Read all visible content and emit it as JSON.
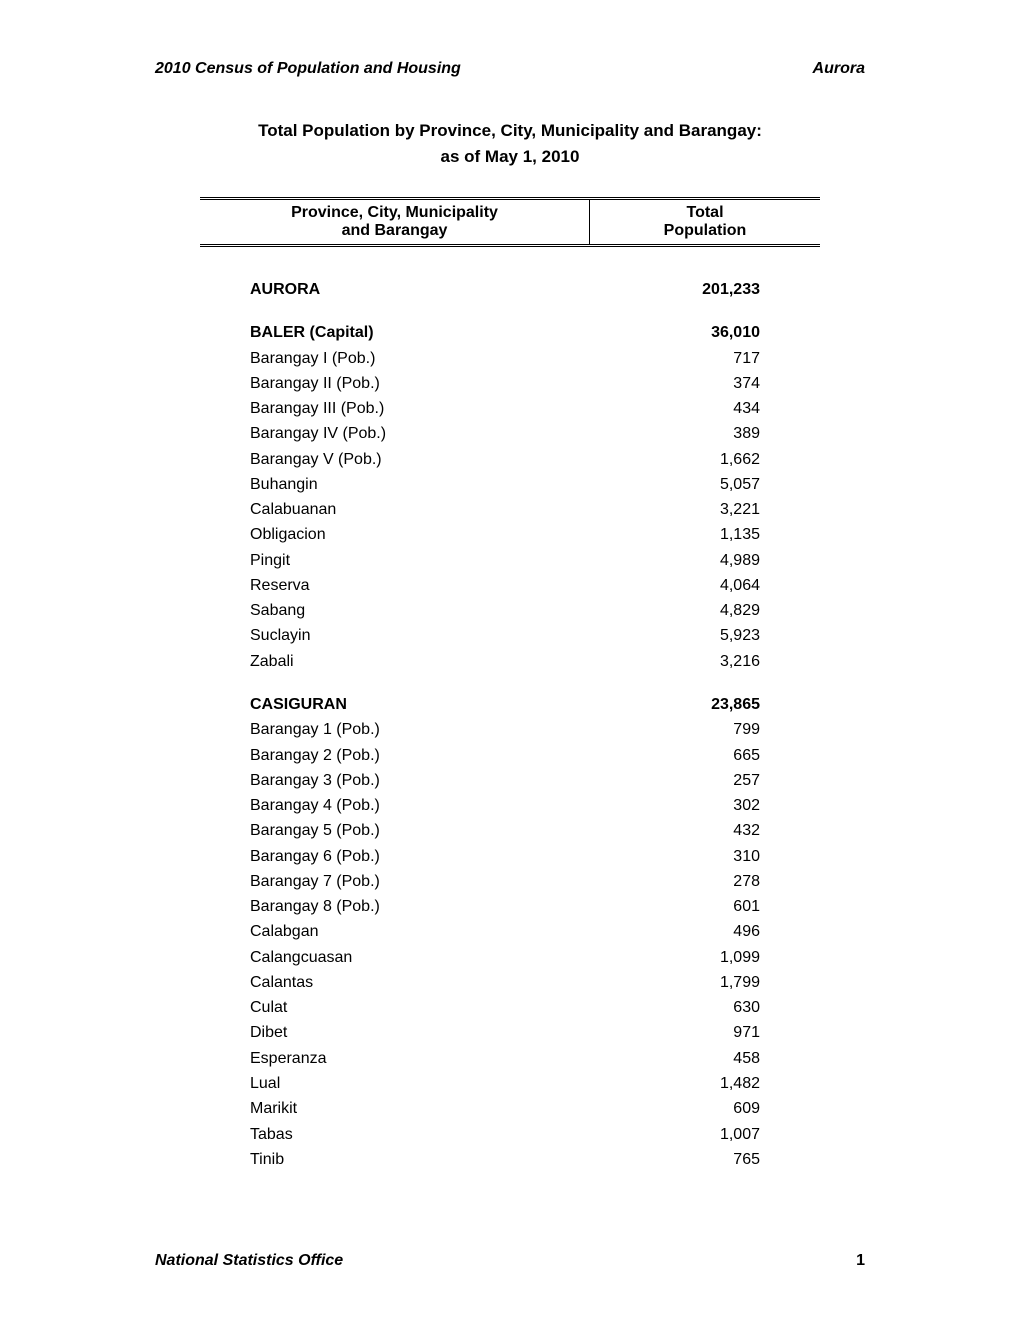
{
  "header": {
    "left": "2010 Census of Population and Housing",
    "right": "Aurora"
  },
  "title": {
    "line1": "Total Population by Province, City, Municipality and Barangay:",
    "line2": "as of May 1, 2010"
  },
  "columns": {
    "left_line1": "Province, City, Municipality",
    "left_line2": "and Barangay",
    "right_line1": "Total",
    "right_line2": "Population"
  },
  "rows": [
    {
      "type": "spacer"
    },
    {
      "level": 0,
      "name": "AURORA",
      "value": "201,233"
    },
    {
      "type": "spacer"
    },
    {
      "level": 1,
      "name": "BALER (Capital)",
      "value": "36,010"
    },
    {
      "level": 2,
      "name": "Barangay I (Pob.)",
      "value": "717"
    },
    {
      "level": 2,
      "name": "Barangay II (Pob.)",
      "value": "374"
    },
    {
      "level": 2,
      "name": "Barangay III (Pob.)",
      "value": "434"
    },
    {
      "level": 2,
      "name": "Barangay IV (Pob.)",
      "value": "389"
    },
    {
      "level": 2,
      "name": "Barangay V (Pob.)",
      "value": "1,662"
    },
    {
      "level": 2,
      "name": "Buhangin",
      "value": "5,057"
    },
    {
      "level": 2,
      "name": "Calabuanan",
      "value": "3,221"
    },
    {
      "level": 2,
      "name": "Obligacion",
      "value": "1,135"
    },
    {
      "level": 2,
      "name": "Pingit",
      "value": "4,989"
    },
    {
      "level": 2,
      "name": "Reserva",
      "value": "4,064"
    },
    {
      "level": 2,
      "name": "Sabang",
      "value": "4,829"
    },
    {
      "level": 2,
      "name": "Suclayin",
      "value": "5,923"
    },
    {
      "level": 2,
      "name": "Zabali",
      "value": "3,216"
    },
    {
      "type": "spacer"
    },
    {
      "level": 1,
      "name": "CASIGURAN",
      "value": "23,865"
    },
    {
      "level": 2,
      "name": "Barangay 1 (Pob.)",
      "value": "799"
    },
    {
      "level": 2,
      "name": "Barangay 2 (Pob.)",
      "value": "665"
    },
    {
      "level": 2,
      "name": "Barangay 3 (Pob.)",
      "value": "257"
    },
    {
      "level": 2,
      "name": "Barangay 4 (Pob.)",
      "value": "302"
    },
    {
      "level": 2,
      "name": "Barangay 5 (Pob.)",
      "value": "432"
    },
    {
      "level": 2,
      "name": "Barangay 6 (Pob.)",
      "value": "310"
    },
    {
      "level": 2,
      "name": "Barangay 7 (Pob.)",
      "value": "278"
    },
    {
      "level": 2,
      "name": "Barangay 8 (Pob.)",
      "value": "601"
    },
    {
      "level": 2,
      "name": "Calabgan",
      "value": "496"
    },
    {
      "level": 2,
      "name": "Calangcuasan",
      "value": "1,099"
    },
    {
      "level": 2,
      "name": "Calantas",
      "value": "1,799"
    },
    {
      "level": 2,
      "name": "Culat",
      "value": "630"
    },
    {
      "level": 2,
      "name": "Dibet",
      "value": "971"
    },
    {
      "level": 2,
      "name": "Esperanza",
      "value": "458"
    },
    {
      "level": 2,
      "name": "Lual",
      "value": "1,482"
    },
    {
      "level": 2,
      "name": "Marikit",
      "value": "609"
    },
    {
      "level": 2,
      "name": "Tabas",
      "value": "1,007"
    },
    {
      "level": 2,
      "name": "Tinib",
      "value": "765"
    }
  ],
  "footer": {
    "org": "National Statistics Office",
    "page": "1"
  }
}
